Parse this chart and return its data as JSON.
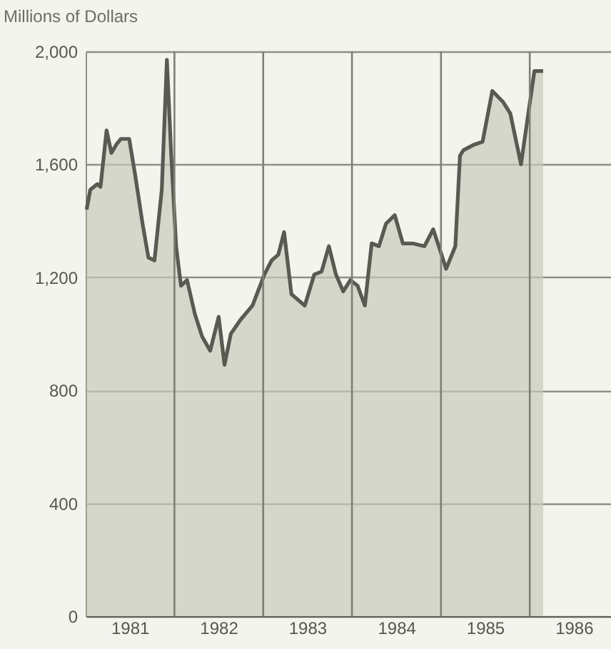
{
  "chart_data": {
    "type": "area",
    "ylabel": "Millions of Dollars",
    "x": [
      "1981-01-05",
      "1981-01-20",
      "1981-02-18",
      "1981-03-03",
      "1981-03-28",
      "1981-04-17",
      "1981-05-07",
      "1981-05-26",
      "1981-06-29",
      "1981-07-24",
      "1981-08-23",
      "1981-09-16",
      "1981-10-11",
      "1981-11-10",
      "1981-12-01",
      "1981-12-19",
      "1982-01-08",
      "1982-01-28",
      "1982-02-22",
      "1982-03-26",
      "1982-04-25",
      "1982-05-28",
      "1982-07-02",
      "1982-07-26",
      "1982-08-21",
      "1982-09-30",
      "1982-11-18",
      "1983-01-06",
      "1983-02-05",
      "1983-03-04",
      "1983-03-28",
      "1983-04-27",
      "1983-06-21",
      "1983-07-30",
      "1983-08-29",
      "1983-09-28",
      "1983-10-27",
      "1983-11-26",
      "1983-12-25",
      "1984-01-24",
      "1984-02-23",
      "1984-03-22",
      "1984-04-21",
      "1984-05-20",
      "1984-06-25",
      "1984-07-28",
      "1984-09-06",
      "1984-10-25",
      "1984-11-30",
      "1984-12-23",
      "1985-01-22",
      "1985-03-01",
      "1985-03-20",
      "1985-04-03",
      "1985-05-18",
      "1985-06-21",
      "1985-07-31",
      "1985-09-14",
      "1985-10-13",
      "1985-11-26",
      "1985-12-21",
      "1986-01-20",
      "1986-02-25"
    ],
    "series": [
      {
        "color": "#c6cab9",
        "values": [
          1440,
          1510,
          1530,
          1520,
          1720,
          1640,
          1670,
          1690,
          1690,
          1560,
          1390,
          1270,
          1260,
          1510,
          1970,
          1630,
          1310,
          1170,
          1190,
          1070,
          990,
          940,
          1060,
          890,
          1000,
          1050,
          1100,
          1210,
          1260,
          1280,
          1360,
          1140,
          1100,
          1210,
          1220,
          1310,
          1210,
          1150,
          1190,
          1170,
          1100,
          1320,
          1310,
          1390,
          1420,
          1320,
          1320,
          1310,
          1370,
          1310,
          1230,
          1310,
          1630,
          1650,
          1670,
          1680,
          1860,
          1820,
          1780,
          1600,
          1750,
          1930,
          1930
        ]
      }
    ],
    "xlim": [
      "1981-01-01",
      "1986-12-01"
    ],
    "xticks": [
      {
        "value": "1981-07-01",
        "label": "1981"
      },
      {
        "value": "1982-01-01",
        "label": null
      },
      {
        "value": "1982-07-01",
        "label": "1982"
      },
      {
        "value": "1983-01-01",
        "label": null
      },
      {
        "value": "1983-07-01",
        "label": "1983"
      },
      {
        "value": "1984-01-01",
        "label": null
      },
      {
        "value": "1984-07-01",
        "label": "1984"
      },
      {
        "value": "1985-01-01",
        "label": null
      },
      {
        "value": "1985-07-01",
        "label": "1985"
      },
      {
        "value": "1986-01-01",
        "label": null
      },
      {
        "value": "1986-07-01",
        "label": "1986"
      }
    ],
    "ylim": [
      0,
      2000
    ],
    "yticks": [
      {
        "value": 0,
        "label": "0"
      },
      {
        "value": 400,
        "label": "400"
      },
      {
        "value": 800,
        "label": "800"
      },
      {
        "value": 1200,
        "label": "1,200"
      },
      {
        "value": 1600,
        "label": "1,600"
      },
      {
        "value": 2000,
        "label": "2,000"
      }
    ],
    "grid": true
  }
}
